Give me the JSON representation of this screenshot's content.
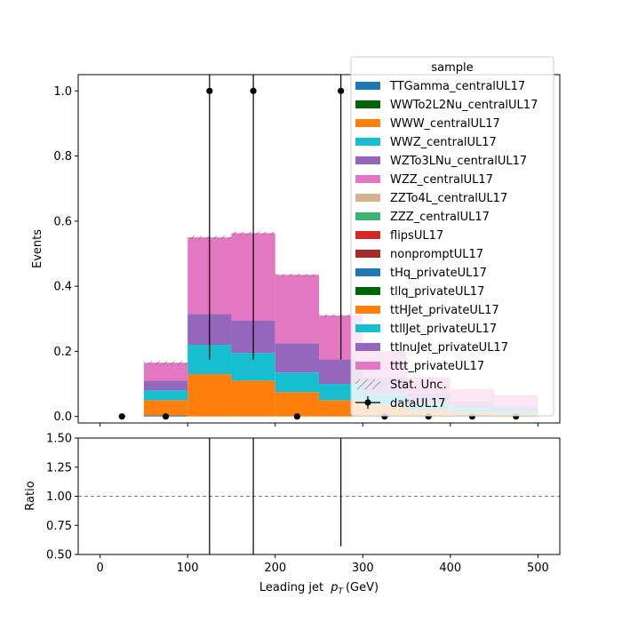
{
  "chart_data": [
    {
      "type": "bar",
      "stacked": true,
      "histogram": true,
      "bin_edges": [
        0,
        50,
        100,
        150,
        200,
        250,
        300,
        350,
        400,
        450,
        500
      ],
      "xlim": [
        -25,
        525
      ],
      "ylim": [
        -0.02,
        1.05
      ],
      "xticks": [
        "0",
        "100",
        "200",
        "300",
        "400",
        "500"
      ],
      "xtick_values": [
        0,
        100,
        200,
        300,
        400,
        500
      ],
      "yticks": [
        "0.0",
        "0.2",
        "0.4",
        "0.6",
        "0.8",
        "1.0"
      ],
      "ytick_values": [
        0,
        0.2,
        0.4,
        0.6,
        0.8,
        1.0
      ],
      "ylabel": "Events",
      "legend": {
        "title": "sample",
        "placement": "top-right",
        "stat_unc_label": "Stat. Unc.",
        "data_label": "dataUL17"
      },
      "series": [
        {
          "name": "TTGamma_centralUL17",
          "color": "#1f77b4",
          "values": [
            0,
            0.003,
            0,
            0,
            0,
            0,
            0,
            0,
            0,
            0
          ]
        },
        {
          "name": "WWTo2L2Nu_centralUL17",
          "color": "#006400",
          "values": [
            0,
            0,
            0,
            0,
            0,
            0,
            0,
            0,
            0,
            0
          ]
        },
        {
          "name": "WWW_centralUL17",
          "color": "#ff7f0e",
          "values": [
            0,
            0.047,
            0.13,
            0.11,
            0.075,
            0.05,
            0.035,
            0.02,
            0.012,
            0.008
          ]
        },
        {
          "name": "WWZ_centralUL17",
          "color": "#17becf",
          "values": [
            0,
            0.03,
            0.09,
            0.085,
            0.06,
            0.05,
            0.035,
            0.02,
            0.014,
            0.01
          ]
        },
        {
          "name": "WZTo3LNu_centralUL17",
          "color": "#9467bd",
          "values": [
            0,
            0.03,
            0.095,
            0.1,
            0.09,
            0.075,
            0.05,
            0.03,
            0.02,
            0.012
          ]
        },
        {
          "name": "WZZ_centralUL17",
          "color": "#e377c2",
          "values": [
            0,
            0.055,
            0.235,
            0.268,
            0.21,
            0.135,
            0.08,
            0.05,
            0.038,
            0.035
          ]
        },
        {
          "name": "ZZTo4L_centralUL17",
          "color": "#d2b48c",
          "values": [
            0,
            0,
            0,
            0,
            0,
            0,
            0,
            0,
            0,
            0
          ]
        },
        {
          "name": "ZZZ_centralUL17",
          "color": "#3cb371",
          "values": [
            0,
            0,
            0,
            0,
            0,
            0,
            0,
            0,
            0,
            0
          ]
        },
        {
          "name": "flipsUL17",
          "color": "#d62728",
          "values": [
            0,
            0,
            0,
            0,
            0,
            0,
            0,
            0,
            0,
            0
          ]
        },
        {
          "name": "nonpromptUL17",
          "color": "#a52a2a",
          "values": [
            0,
            0,
            0,
            0,
            0,
            0,
            0,
            0,
            0,
            0
          ]
        },
        {
          "name": "tHq_privateUL17",
          "color": "#1f77b4",
          "values": [
            0,
            0,
            0,
            0,
            0,
            0,
            0,
            0,
            0,
            0
          ]
        },
        {
          "name": "tllq_privateUL17",
          "color": "#006400",
          "values": [
            0,
            0,
            0,
            0,
            0,
            0,
            0,
            0,
            0,
            0
          ]
        },
        {
          "name": "ttHJet_privateUL17",
          "color": "#ff7f0e",
          "values": [
            0,
            0,
            0,
            0,
            0,
            0,
            0,
            0,
            0,
            0
          ]
        },
        {
          "name": "ttllJet_privateUL17",
          "color": "#17becf",
          "values": [
            0,
            0,
            0,
            0,
            0,
            0,
            0,
            0,
            0,
            0
          ]
        },
        {
          "name": "ttlnuJet_privateUL17",
          "color": "#9467bd",
          "values": [
            0,
            0,
            0,
            0,
            0,
            0,
            0,
            0,
            0,
            0
          ]
        },
        {
          "name": "tttt_privateUL17",
          "color": "#e377c2",
          "values": [
            0,
            0,
            0,
            0,
            0,
            0,
            0,
            0,
            0,
            0
          ]
        }
      ],
      "stat_unc": [
        0,
        0.006,
        0.005,
        0.005,
        0.004,
        0.004,
        0.003,
        0.003,
        0.002,
        0.002
      ],
      "data": {
        "name": "dataUL17",
        "x": [
          25,
          75,
          125,
          175,
          225,
          275,
          325,
          375,
          425,
          475
        ],
        "y": [
          0,
          0,
          1,
          1,
          0,
          1,
          0,
          0,
          0,
          0
        ],
        "yerr_low": [
          0,
          0,
          0.825,
          0.825,
          0,
          0.825,
          0,
          0,
          0,
          0
        ],
        "yerr_high": [
          0,
          0,
          2.3,
          2.3,
          0,
          2.3,
          0,
          0,
          0,
          0
        ]
      }
    },
    {
      "type": "scatter",
      "panel": "ratio",
      "xlim": [
        -25,
        525
      ],
      "ylim": [
        0.5,
        1.5
      ],
      "xticks": [
        "0",
        "100",
        "200",
        "300",
        "400",
        "500"
      ],
      "xtick_values": [
        0,
        100,
        200,
        300,
        400,
        500
      ],
      "yticks": [
        "0.50",
        "0.75",
        "1.00",
        "1.25",
        "1.50"
      ],
      "ytick_values": [
        0.5,
        0.75,
        1.0,
        1.25,
        1.5
      ],
      "ylabel": "Ratio",
      "xlabel": "Leading jet",
      "xlabel_math": "p",
      "xlabel_sub": "T",
      "xlabel_unit": "(GeV)",
      "reference_line": 1.0,
      "ratio_errors": [
        {
          "x": 125,
          "low": 0.5,
          "high": 1.5
        },
        {
          "x": 175,
          "low": 0.5,
          "high": 1.5
        },
        {
          "x": 275,
          "low": 0.57,
          "high": 1.5
        }
      ]
    }
  ]
}
